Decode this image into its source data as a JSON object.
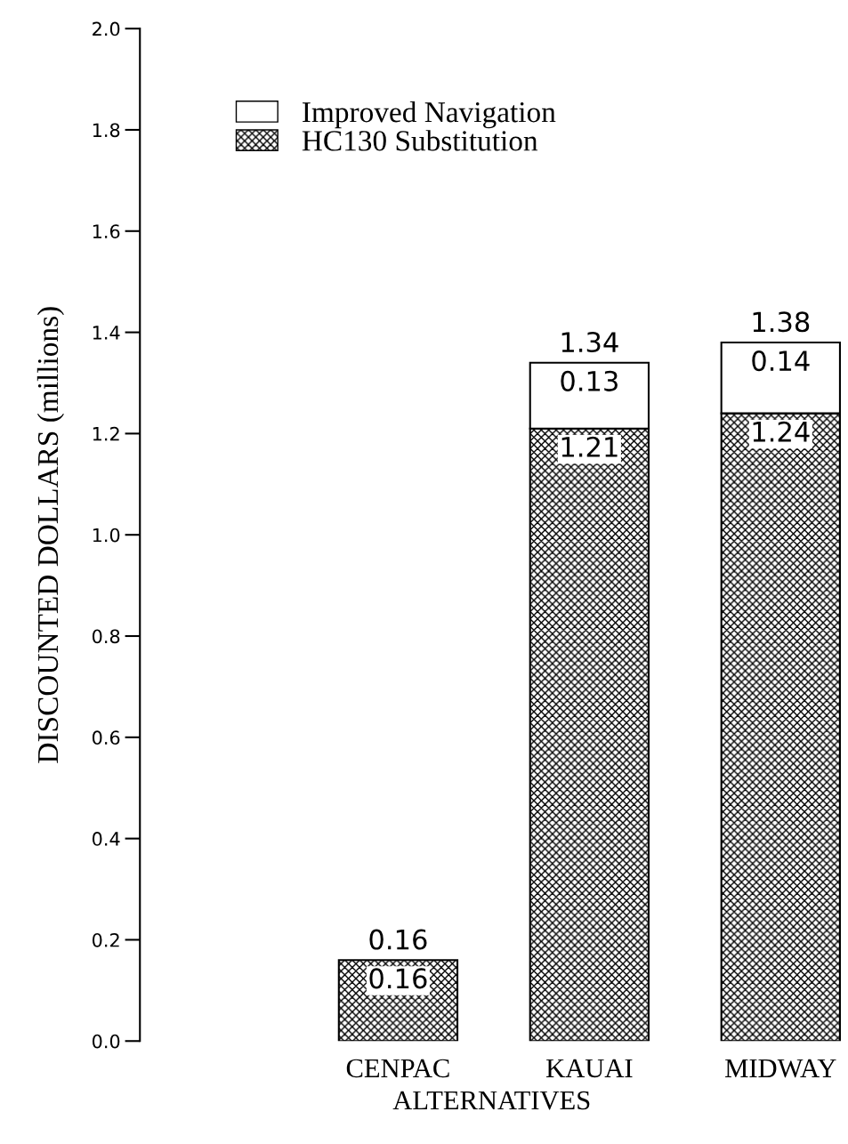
{
  "chart_data": {
    "type": "bar",
    "stacked": true,
    "xlabel": "ALTERNATIVES",
    "ylabel": "DISCOUNTED DOLLARS (millions)",
    "categories": [
      "CENPAC",
      "KAUAI",
      "MIDWAY"
    ],
    "series": [
      {
        "name": "HC130 Substitution",
        "color": "#000000",
        "values": [
          0.16,
          1.21,
          1.24
        ],
        "value_labels": [
          "0.16",
          "1.21",
          "1.24"
        ]
      },
      {
        "name": "Improved Navigation",
        "color": "#ffffff",
        "values": [
          null,
          0.13,
          0.14
        ],
        "value_labels": [
          null,
          "0.13",
          "0.14"
        ]
      }
    ],
    "totals": [
      "0.16",
      "1.34",
      "1.38"
    ],
    "ylim": [
      0,
      2.0
    ],
    "yticks": [
      {
        "value": 0,
        "label": "0.0"
      },
      {
        "value": 0.2,
        "label": "0.2"
      },
      {
        "value": 0.4,
        "label": "0.4"
      },
      {
        "value": 0.6,
        "label": "0.6"
      },
      {
        "value": 0.8,
        "label": "0.8"
      },
      {
        "value": 1.0,
        "label": "1.0"
      },
      {
        "value": 1.2,
        "label": "1.2"
      },
      {
        "value": 1.4,
        "label": "1.4"
      },
      {
        "value": 1.6,
        "label": "1.6"
      },
      {
        "value": 1.8,
        "label": "1.8"
      },
      {
        "value": 2.0,
        "label": "2.0"
      }
    ],
    "grid": false,
    "legend": "top left"
  }
}
